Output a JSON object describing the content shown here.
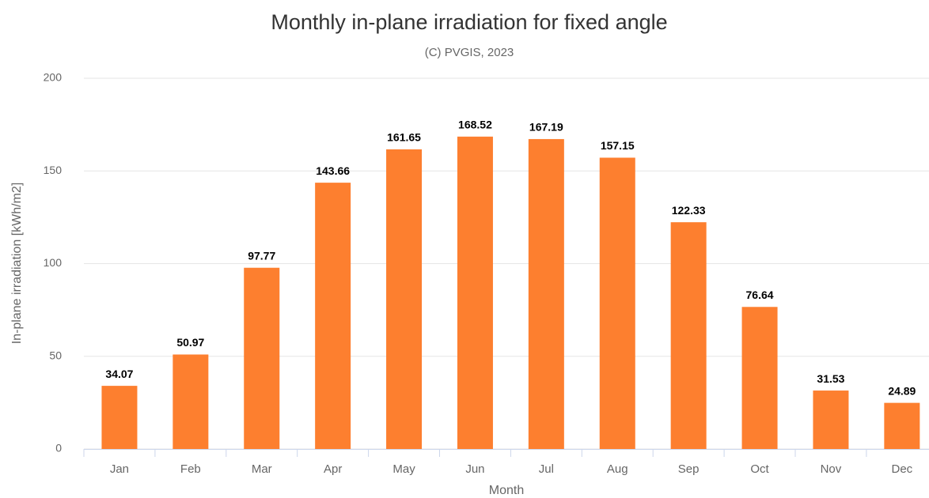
{
  "chart_data": {
    "type": "bar",
    "title": "Monthly in-plane irradiation for fixed angle",
    "subtitle": "(C) PVGIS, 2023",
    "x_label": "Month",
    "y_label": "In-plane irradiation [kWh/m2]",
    "categories": [
      "Jan",
      "Feb",
      "Mar",
      "Apr",
      "May",
      "Jun",
      "Jul",
      "Aug",
      "Sep",
      "Oct",
      "Nov",
      "Dec"
    ],
    "values": [
      34.07,
      50.97,
      97.77,
      143.66,
      161.65,
      168.52,
      167.19,
      157.15,
      122.33,
      76.64,
      31.53,
      24.89
    ],
    "color": "#fd7f2f",
    "ylim": [
      0,
      200
    ],
    "yticks": [
      0,
      50,
      100,
      150,
      200
    ],
    "grid": true
  }
}
